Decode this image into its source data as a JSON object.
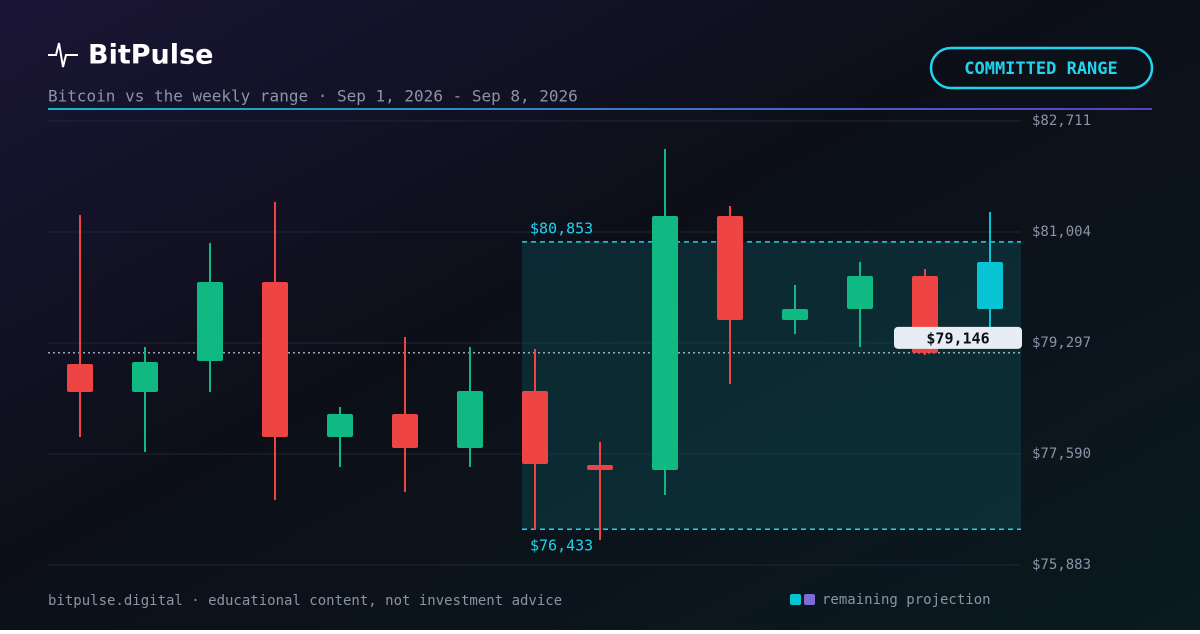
{
  "header": {
    "brand": "BitPulse",
    "subtitle": "Bitcoin vs the weekly range · Sep 1, 2026 - Sep 8, 2026",
    "badge": "COMMITTED RANGE"
  },
  "footer": {
    "text": "bitpulse.digital · educational content, not investment advice"
  },
  "chart_data": {
    "type": "candlestick",
    "up_color": "#10b981",
    "down_color": "#ef4444",
    "projection_color": "#06c4d4",
    "candles": [
      {
        "open": 78974,
        "high": 81265,
        "low": 77852,
        "close": 78544
      },
      {
        "open": 78544,
        "high": 79236,
        "low": 77621,
        "close": 79005
      },
      {
        "open": 79020,
        "high": 80835,
        "low": 78544,
        "close": 80235
      },
      {
        "open": 80235,
        "high": 81465,
        "low": 76883,
        "close": 77852
      },
      {
        "open": 77852,
        "high": 78313,
        "low": 77390,
        "close": 78205
      },
      {
        "open": 78205,
        "high": 79389,
        "low": 77006,
        "close": 77682
      },
      {
        "open": 77682,
        "high": 79236,
        "low": 77390,
        "close": 78559
      },
      {
        "open": 78559,
        "high": 79205,
        "low": 76421,
        "close": 77436
      },
      {
        "open": 77421,
        "high": 77775,
        "low": 76268,
        "close": 77344
      },
      {
        "open": 77344,
        "high": 82280,
        "low": 76960,
        "close": 81250
      },
      {
        "open": 81250,
        "high": 81404,
        "low": 78667,
        "close": 79651
      },
      {
        "open": 79651,
        "high": 80189,
        "low": 79435,
        "close": 79820
      },
      {
        "open": 79820,
        "high": 80543,
        "low": 79236,
        "close": 80327
      },
      {
        "open": 80327,
        "high": 80435,
        "low": 79113,
        "close": 79146
      },
      {
        "open": 79820,
        "high": 81312,
        "low": 79500,
        "close": 80543,
        "projected": true
      }
    ],
    "range": {
      "high": 80853,
      "low": 76433,
      "high_label": "$80,853",
      "low_label": "$76,433"
    },
    "current": {
      "value": 79146,
      "label": "$79,146"
    },
    "ylim": [
      75883,
      82711
    ],
    "yticks": [
      {
        "value": 82711,
        "label": "$82,711"
      },
      {
        "value": 81004,
        "label": "$81,004"
      },
      {
        "value": 79297,
        "label": "$79,297"
      },
      {
        "value": 77590,
        "label": "$77,590"
      },
      {
        "value": 75883,
        "label": "$75,883"
      }
    ],
    "grid": true,
    "legend": {
      "label": "remaining projection",
      "colors": [
        "#06c4d4",
        "#7c6cd8"
      ]
    }
  }
}
